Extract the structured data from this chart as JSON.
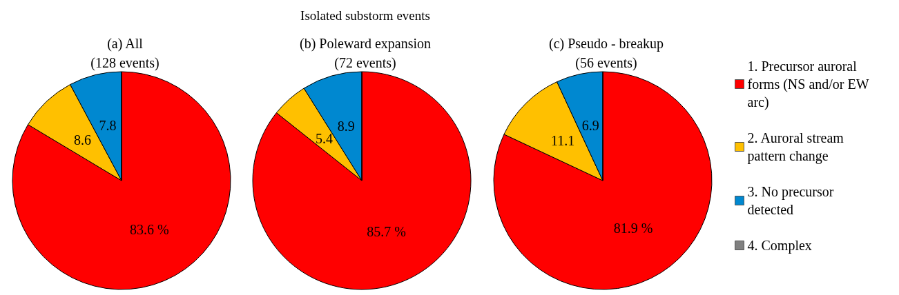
{
  "chart_data": {
    "type": "pie",
    "title": "Isolated substorm events",
    "categories": [
      "1. Precursor auroral forms (NS and/or EW arc)",
      "2. Auroral stream pattern change",
      "3. No precursor detected",
      "4. Complex"
    ],
    "colors": [
      "#ff0000",
      "#ffc000",
      "#0088d0",
      "#808080"
    ],
    "legend": "right",
    "series": [
      {
        "name": "(a) All (128 events)",
        "values": [
          83.6,
          8.6,
          7.8,
          0
        ],
        "value_labels": [
          "83.6 %",
          "8.6",
          "7.8",
          null
        ]
      },
      {
        "name": "(b) Poleward expansion (72 events)",
        "values": [
          85.7,
          5.4,
          8.9,
          0
        ],
        "value_labels": [
          "85.7 %",
          "5.4",
          "8.9",
          null
        ]
      },
      {
        "name": "(c) Pseudo - breakup (56 events)",
        "values": [
          81.9,
          11.1,
          6.9,
          0
        ],
        "value_labels": [
          "81.9 %",
          "11.1",
          "6.9",
          null
        ]
      }
    ]
  }
}
